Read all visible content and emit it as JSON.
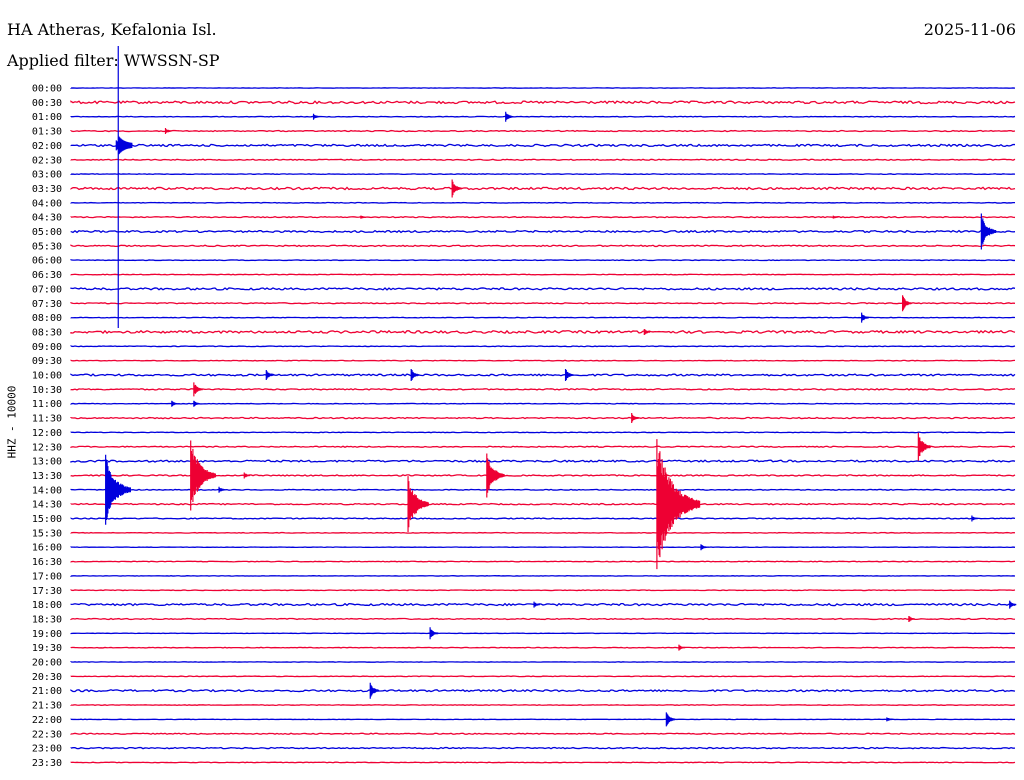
{
  "header": {
    "station": "HA Atheras, Kefalonia Isl.",
    "filter": "Applied filter: WWSSN-SP",
    "date": "2025-11-06"
  },
  "chart_data": {
    "type": "line",
    "title": "HA Atheras, Kefalonia Isl.",
    "ylabel": "HHZ - 10000",
    "trace_colors": [
      "#0000dd",
      "#ee0033"
    ],
    "row_labels": [
      "00:00",
      "00:30",
      "01:00",
      "01:30",
      "02:00",
      "02:30",
      "03:00",
      "03:30",
      "04:00",
      "04:30",
      "05:00",
      "05:30",
      "06:00",
      "06:30",
      "07:00",
      "07:30",
      "08:00",
      "08:30",
      "09:00",
      "09:30",
      "10:00",
      "10:30",
      "11:00",
      "11:30",
      "12:00",
      "12:30",
      "13:00",
      "13:30",
      "14:00",
      "14:30",
      "15:00",
      "15:30",
      "16:00",
      "16:30",
      "17:00",
      "17:30",
      "18:00",
      "18:30",
      "19:00",
      "19:30",
      "20:00",
      "20:30",
      "21:00",
      "21:30",
      "22:00",
      "22:30",
      "23:00",
      "23:30"
    ],
    "row_noise": [
      0.2,
      1.2,
      0.3,
      0.5,
      1.0,
      0.5,
      0.3,
      1.1,
      0.3,
      0.5,
      0.9,
      0.6,
      0.3,
      0.3,
      1.0,
      0.5,
      0.3,
      1.2,
      0.3,
      0.3,
      0.9,
      0.6,
      0.3,
      0.6,
      0.3,
      0.5,
      0.9,
      0.6,
      0.4,
      0.6,
      0.5,
      0.3,
      0.2,
      0.3,
      0.2,
      0.3,
      1.0,
      0.5,
      0.2,
      0.3,
      0.2,
      0.3,
      0.9,
      0.3,
      0.2,
      0.5,
      0.6,
      0.3
    ],
    "minutes_per_row": 30,
    "events": [
      {
        "row": 0,
        "minute": 1.5,
        "amplitude": 60,
        "type": "teleseism"
      },
      {
        "row": 2,
        "minute": 7.7,
        "amplitude": 3,
        "type": "local"
      },
      {
        "row": 2,
        "minute": 13.8,
        "amplitude": 5,
        "type": "local"
      },
      {
        "row": 3,
        "minute": 3.0,
        "amplitude": 3,
        "type": "local"
      },
      {
        "row": 7,
        "minute": 12.1,
        "amplitude": 9,
        "type": "local"
      },
      {
        "row": 9,
        "minute": 9.2,
        "amplitude": 1.5,
        "type": "local"
      },
      {
        "row": 9,
        "minute": 24.2,
        "amplitude": 1.5,
        "type": "local"
      },
      {
        "row": 10,
        "minute": 28.9,
        "amplitude": 18,
        "type": "local"
      },
      {
        "row": 15,
        "minute": 26.4,
        "amplitude": 8,
        "type": "local"
      },
      {
        "row": 16,
        "minute": 25.1,
        "amplitude": 5,
        "type": "local"
      },
      {
        "row": 17,
        "minute": 18.2,
        "amplitude": 3,
        "type": "local"
      },
      {
        "row": 20,
        "minute": 6.2,
        "amplitude": 5,
        "type": "local"
      },
      {
        "row": 20,
        "minute": 10.8,
        "amplitude": 6,
        "type": "local"
      },
      {
        "row": 20,
        "minute": 15.7,
        "amplitude": 6,
        "type": "local"
      },
      {
        "row": 21,
        "minute": 3.9,
        "amplitude": 7,
        "type": "local"
      },
      {
        "row": 22,
        "minute": 3.2,
        "amplitude": 3,
        "type": "local"
      },
      {
        "row": 22,
        "minute": 3.9,
        "amplitude": 3,
        "type": "local"
      },
      {
        "row": 23,
        "minute": 17.8,
        "amplitude": 5,
        "type": "local"
      },
      {
        "row": 25,
        "minute": 26.9,
        "amplitude": 14,
        "type": "local"
      },
      {
        "row": 27,
        "minute": 3.8,
        "amplitude": 35,
        "type": "local"
      },
      {
        "row": 27,
        "minute": 13.2,
        "amplitude": 22,
        "type": "local"
      },
      {
        "row": 27,
        "minute": 5.5,
        "amplitude": 3,
        "type": "local"
      },
      {
        "row": 28,
        "minute": 1.1,
        "amplitude": 35,
        "type": "local"
      },
      {
        "row": 28,
        "minute": 4.7,
        "amplitude": 3,
        "type": "local"
      },
      {
        "row": 29,
        "minute": 10.7,
        "amplitude": 28,
        "type": "local"
      },
      {
        "row": 29,
        "minute": 18.6,
        "amplitude": 65,
        "type": "local"
      },
      {
        "row": 30,
        "minute": 28.6,
        "amplitude": 3,
        "type": "local"
      },
      {
        "row": 32,
        "minute": 20.0,
        "amplitude": 3,
        "type": "local"
      },
      {
        "row": 36,
        "minute": 14.7,
        "amplitude": 3,
        "type": "local"
      },
      {
        "row": 36,
        "minute": 29.8,
        "amplitude": 4,
        "type": "local"
      },
      {
        "row": 37,
        "minute": 26.6,
        "amplitude": 3,
        "type": "local"
      },
      {
        "row": 38,
        "minute": 11.4,
        "amplitude": 6,
        "type": "local"
      },
      {
        "row": 39,
        "minute": 19.3,
        "amplitude": 3,
        "type": "local"
      },
      {
        "row": 42,
        "minute": 9.5,
        "amplitude": 8,
        "type": "local"
      },
      {
        "row": 44,
        "minute": 18.9,
        "amplitude": 7,
        "type": "local"
      },
      {
        "row": 44,
        "minute": 25.9,
        "amplitude": 2,
        "type": "local"
      }
    ]
  }
}
